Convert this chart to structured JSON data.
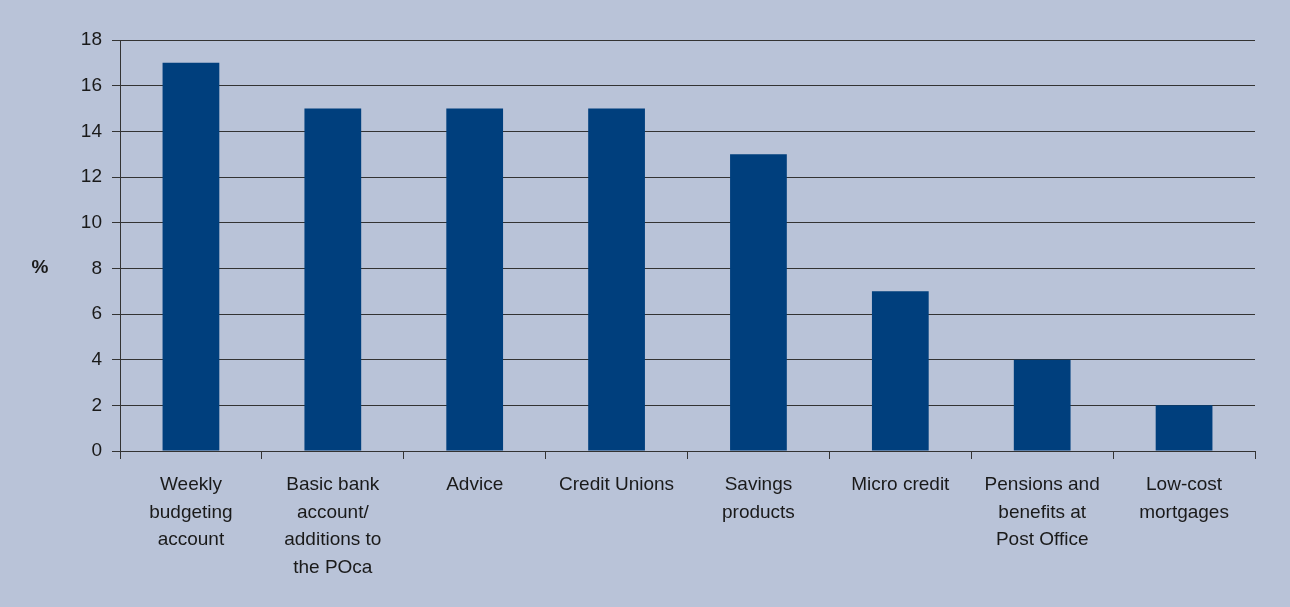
{
  "chart_data": {
    "type": "bar",
    "ylabel": "%",
    "categories": [
      "Weekly budgeting account",
      "Basic bank account/ additions to the POca",
      "Advice",
      "Credit Unions",
      "Savings products",
      "Micro credit",
      "Pensions and benefits at Post Office",
      "Low-cost mortgages"
    ],
    "values": [
      17,
      15,
      15,
      15,
      13,
      7,
      4,
      2
    ],
    "color": "#003f7d",
    "ylim": [
      0,
      18
    ],
    "yticks": [
      0,
      2,
      4,
      6,
      8,
      10,
      12,
      14,
      16,
      18
    ],
    "grid": "y",
    "legend": false
  }
}
